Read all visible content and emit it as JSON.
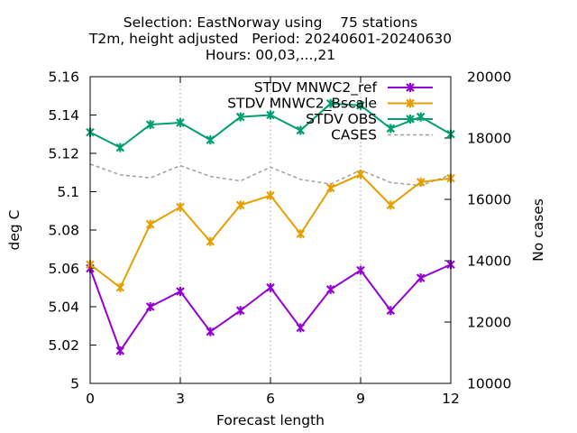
{
  "chart_data": {
    "type": "line",
    "title_lines": [
      "Selection: EastNorway using    75 stations",
      "T2m, height adjusted   Period: 20240601-20240630",
      "Hours: 00,03,...,21"
    ],
    "xlabel": "Forecast length",
    "ylabel": "deg C",
    "y2label": "No cases",
    "xlim": [
      0,
      12
    ],
    "ylim": [
      5.0,
      5.16
    ],
    "y2lim": [
      10000,
      20000
    ],
    "x_ticks": [
      0,
      3,
      6,
      9,
      12
    ],
    "x_tick_labels": [
      "0",
      "3",
      "6",
      "9",
      "12"
    ],
    "y_ticks": [
      5.0,
      5.02,
      5.04,
      5.06,
      5.08,
      5.1,
      5.12,
      5.14,
      5.16
    ],
    "y_tick_labels": [
      "5",
      "5.02",
      "5.04",
      "5.06",
      "5.08",
      "5.1",
      "5.12",
      "5.14",
      "5.16"
    ],
    "y2_ticks": [
      10000,
      12000,
      14000,
      16000,
      18000,
      20000
    ],
    "y2_tick_labels": [
      "10000",
      "12000",
      "14000",
      "16000",
      "18000",
      "20000"
    ],
    "grid": "vertical dotted at x ticks",
    "legend_position": "top-right",
    "x": [
      0,
      1,
      2,
      3,
      4,
      5,
      6,
      7,
      8,
      9,
      10,
      11,
      12
    ],
    "series": [
      {
        "name": "STDV MNWC2_ref",
        "color": "#9400d3",
        "axis": "y",
        "values": [
          5.06,
          5.017,
          5.04,
          5.048,
          5.027,
          5.038,
          5.05,
          5.029,
          5.049,
          5.059,
          5.038,
          5.055,
          5.062
        ]
      },
      {
        "name": "STDV MNWC2_Bscale",
        "color": "#e69f00",
        "axis": "y",
        "values": [
          5.062,
          5.05,
          5.083,
          5.092,
          5.074,
          5.093,
          5.098,
          5.078,
          5.102,
          5.109,
          5.093,
          5.105,
          5.107
        ]
      },
      {
        "name": "STDV OBS",
        "color": "#009e73",
        "axis": "y",
        "values": [
          5.131,
          5.123,
          5.135,
          5.136,
          5.127,
          5.139,
          5.14,
          5.132,
          5.146,
          5.145,
          5.133,
          5.139,
          5.13
        ]
      },
      {
        "name": "CASES",
        "color": "#a0a0a0",
        "axis": "y2",
        "dashed": true,
        "values": [
          17150,
          16800,
          16700,
          17100,
          16750,
          16600,
          17050,
          16650,
          16500,
          16950,
          16550,
          16450,
          16800
        ]
      }
    ],
    "legend_labels": [
      "STDV MNWC2_ref",
      "STDV MNWC2_Bscale",
      "STDV OBS",
      "CASES"
    ]
  }
}
